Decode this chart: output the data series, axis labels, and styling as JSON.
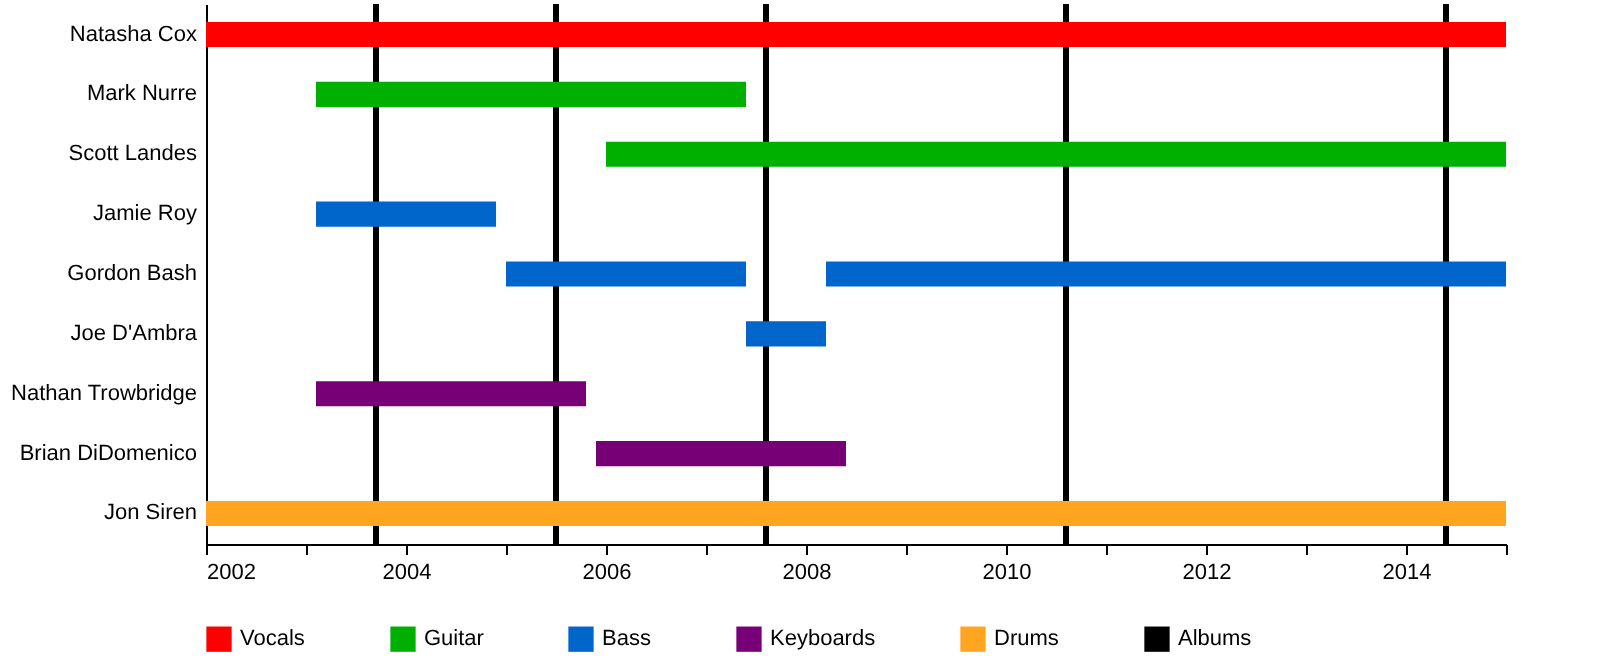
{
  "chart_data": {
    "type": "bar",
    "orientation": "horizontal",
    "legend": "bottom",
    "categories": [
      "Natasha Cox",
      "Mark Nurre",
      "Scott Landes",
      "Jamie Roy",
      "Gordon Bash",
      "Joe D'Ambra",
      "Nathan Trowbridge",
      "Brian DiDomenico",
      "Jon Siren"
    ],
    "series": [
      {
        "name": "Vocals",
        "color": "#ff0000",
        "base": [
          2002,
          null,
          null,
          null,
          null,
          null,
          null,
          null,
          null
        ],
        "values": [
          13,
          null,
          null,
          null,
          null,
          null,
          null,
          null,
          null
        ]
      },
      {
        "name": "Guitar",
        "color": "#00b000",
        "base": [
          null,
          2003.1,
          2006,
          null,
          null,
          null,
          null,
          null,
          null
        ],
        "values": [
          null,
          4.3,
          9,
          null,
          null,
          null,
          null,
          null,
          null
        ]
      },
      {
        "name": "Bass",
        "color": "#0066cc",
        "base": [
          null,
          null,
          null,
          2003.1,
          2005,
          2007.4,
          null,
          null,
          null
        ],
        "values": [
          null,
          null,
          null,
          1.8,
          2.4,
          0.8,
          null,
          null,
          null
        ]
      },
      {
        "color": "#0066cc",
        "base": [
          null,
          null,
          null,
          null,
          2008.2,
          null,
          null,
          null,
          null
        ],
        "values": [
          null,
          null,
          null,
          null,
          6.8,
          null,
          null,
          null,
          null
        ]
      },
      {
        "name": "Keyboards",
        "color": "#770077",
        "base": [
          null,
          null,
          null,
          null,
          null,
          null,
          2003.1,
          2005.9,
          null
        ],
        "values": [
          null,
          null,
          null,
          null,
          null,
          null,
          2.7,
          2.5,
          null
        ]
      },
      {
        "name": "Drums",
        "color": "#ffa520",
        "base": [
          null,
          null,
          null,
          null,
          null,
          null,
          null,
          null,
          2002
        ],
        "values": [
          null,
          null,
          null,
          null,
          null,
          null,
          null,
          null,
          13
        ]
      }
    ],
    "ref_lines": [
      {
        "axis": "x",
        "value": 2003.7,
        "label": "Albums",
        "color": "#000000"
      },
      {
        "axis": "x",
        "value": 2005.5,
        "color": "#000000"
      },
      {
        "axis": "x",
        "value": 2007.6,
        "color": "#000000"
      },
      {
        "axis": "x",
        "value": 2010.6,
        "color": "#000000"
      },
      {
        "axis": "x",
        "value": 2014.4,
        "color": "#000000"
      }
    ],
    "xlim": [
      2002,
      2015
    ],
    "xticks": [
      2002,
      {
        "value": 2003,
        "label": null
      },
      2004,
      {
        "value": 2005,
        "label": null
      },
      2006,
      {
        "value": 2007,
        "label": null
      },
      2008,
      {
        "value": 2009,
        "label": null
      },
      2010,
      {
        "value": 2011,
        "label": null
      },
      2012,
      {
        "value": 2013,
        "label": null
      },
      2014,
      {
        "value": 2015,
        "label": null
      }
    ]
  }
}
